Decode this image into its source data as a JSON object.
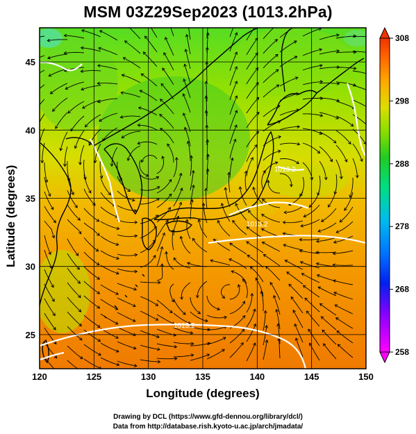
{
  "title": "MSM 03Z29Sep2023 (1013.2hPa)",
  "xlabel": "Longitude (degrees)",
  "ylabel": "Latitude  (degrees)",
  "credits": {
    "line1": "Drawing by DCL (https://www.gfd-dennou.org/library/dcl/)",
    "line2": "Data from http://database.rish.kyoto-u.ac.jp/arch/jmadata/"
  },
  "map": {
    "lon_range": [
      120,
      150
    ],
    "lat_range": [
      22.5,
      47.5
    ],
    "lon_ticks": [
      120,
      125,
      130,
      135,
      140,
      145,
      150
    ],
    "lat_ticks": [
      25,
      30,
      35,
      40,
      45
    ],
    "grid": true,
    "contour_labels": [
      "1013.2",
      "1013.2",
      "1013.2"
    ]
  },
  "colorbar": {
    "min": 258,
    "max": 308,
    "ticks": [
      258,
      268,
      278,
      288,
      298,
      308
    ],
    "colors": [
      "#ff00ff",
      "#6600ff",
      "#0033ff",
      "#00aaff",
      "#00e0c0",
      "#00cc33",
      "#66dd00",
      "#dddd00",
      "#ffaa00",
      "#ff6600",
      "#ee2200"
    ]
  }
}
